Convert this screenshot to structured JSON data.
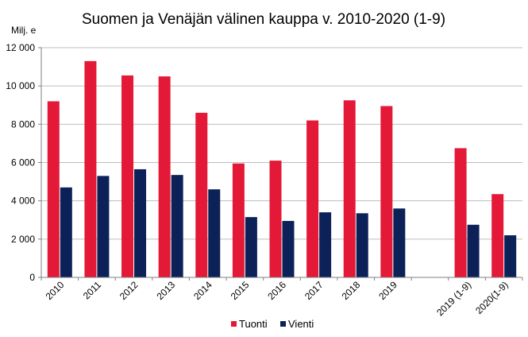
{
  "chart_data": {
    "type": "bar",
    "title": "Suomen ja Venäjän välinen kauppa v. 2010-2020 (1-9)",
    "ylabel": "Milj. e",
    "xlabel": "",
    "ylim": [
      0,
      12000
    ],
    "yticks": [
      0,
      2000,
      4000,
      6000,
      8000,
      10000,
      12000
    ],
    "ytick_labels": [
      "0",
      "2 000",
      "4 000",
      "6 000",
      "8 000",
      "10 000",
      "12 000"
    ],
    "grid": true,
    "legend_position": "bottom",
    "categories": [
      "2010",
      "2011",
      "2012",
      "2013",
      "2014",
      "2015",
      "2016",
      "2017",
      "2018",
      "2019",
      "",
      "2019 (1-9)",
      "2020(1-9)"
    ],
    "series": [
      {
        "name": "Tuonti",
        "color": "#e31937",
        "values": [
          9200,
          11300,
          10550,
          10500,
          8600,
          5950,
          6100,
          8200,
          9250,
          8950,
          null,
          6750,
          4350
        ]
      },
      {
        "name": "Vienti",
        "color": "#0c2158",
        "values": [
          4700,
          5300,
          5650,
          5350,
          4600,
          3150,
          2950,
          3400,
          3350,
          3600,
          null,
          2750,
          2200
        ]
      }
    ]
  }
}
